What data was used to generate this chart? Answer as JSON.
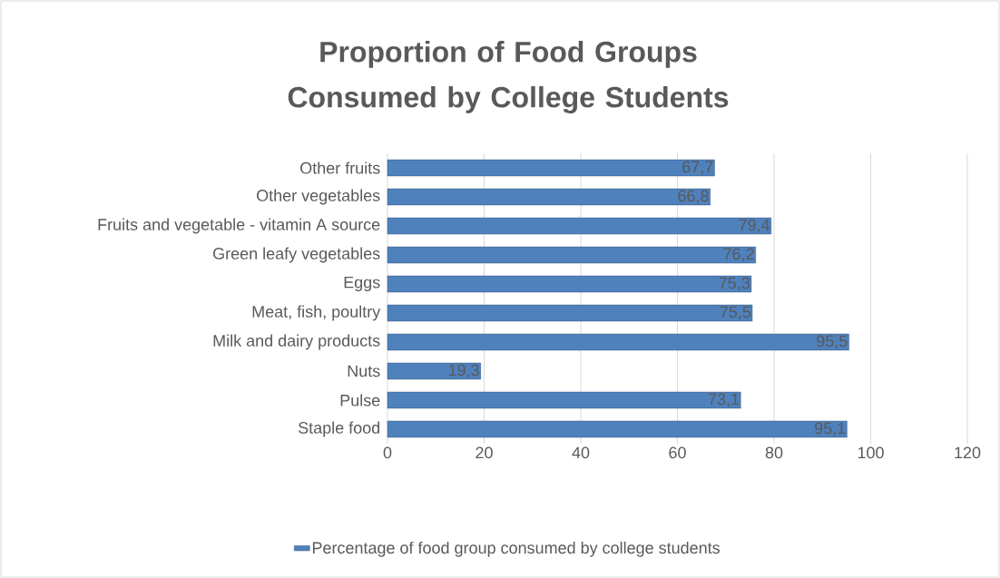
{
  "chart_data": {
    "type": "bar",
    "orientation": "horizontal",
    "title": "Proportion of Food Groups Consumed by College Students",
    "categories": [
      "Other fruits",
      "Other vegetables",
      "Fruits and vegetable - vitamin A source",
      "Green leafy vegetables",
      "Eggs",
      "Meat, fish, poultry",
      "Milk and dairy products",
      "Nuts",
      "Pulse",
      "Staple food"
    ],
    "series": [
      {
        "name": "Percentage of food group consumed by college students",
        "color": "#4f81bd",
        "values": [
          67.7,
          66.8,
          79.4,
          76.2,
          75.3,
          75.5,
          95.5,
          19.3,
          73.1,
          95.1
        ],
        "value_labels": [
          "67,7",
          "66,8",
          "79,4",
          "76,2",
          "75,3",
          "75,5",
          "95,5",
          "19,3",
          "73,1",
          "95,1"
        ]
      }
    ],
    "xlim": [
      0,
      120
    ],
    "xticks": [
      0,
      20,
      40,
      60,
      80,
      100,
      120
    ],
    "grid": "x",
    "legend": "bottom"
  }
}
